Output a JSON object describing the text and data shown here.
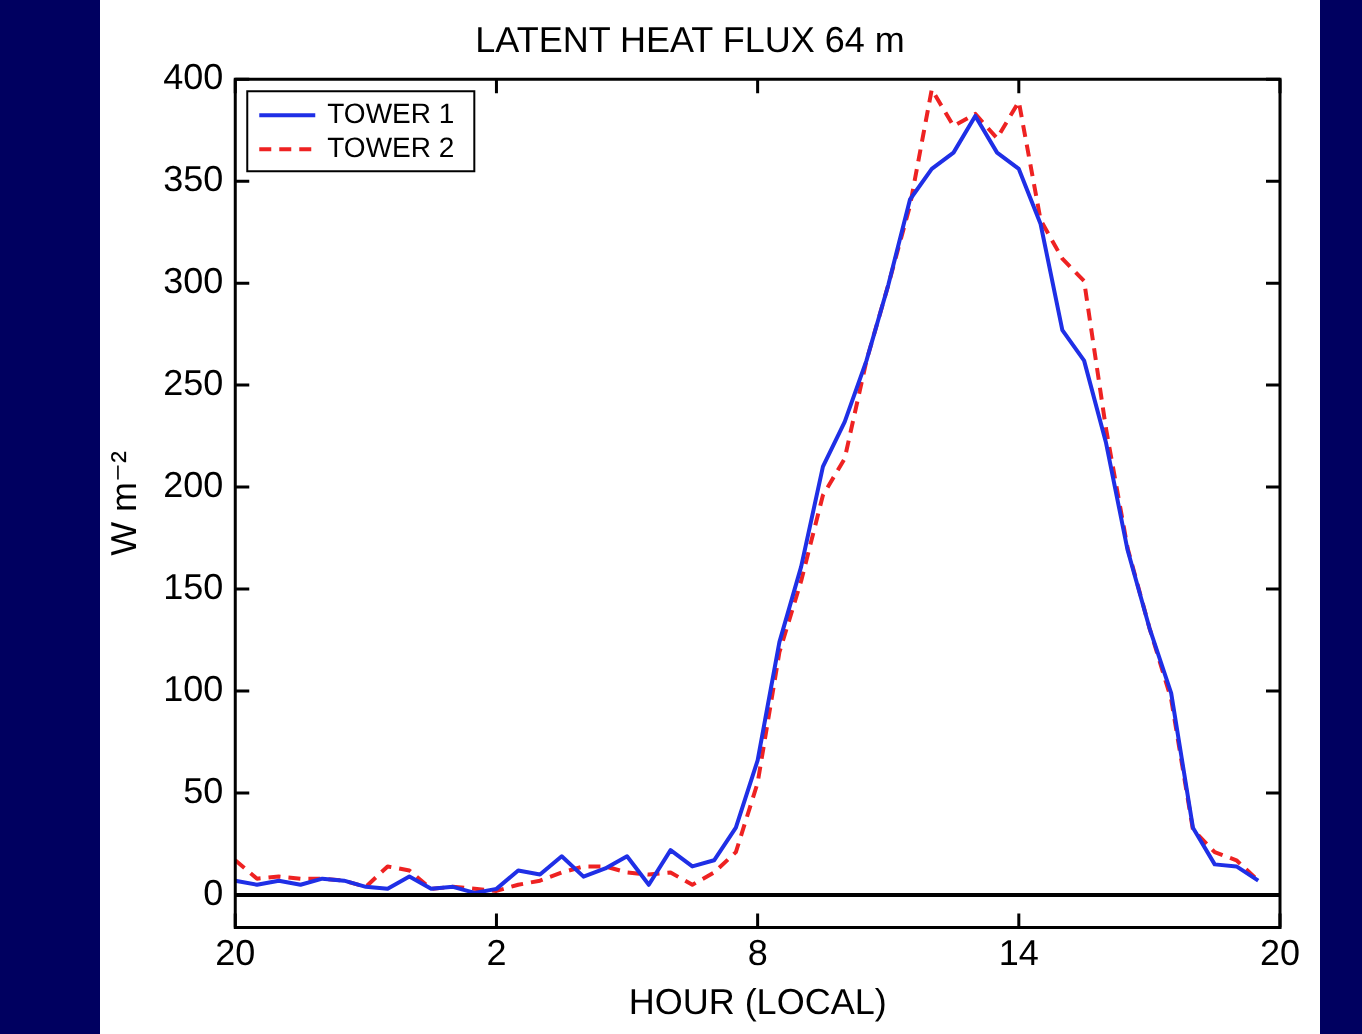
{
  "chart_data": {
    "type": "line",
    "title": "LATENT HEAT FLUX 64 m",
    "xlabel": "HOUR (LOCAL)",
    "ylabel": "W m⁻²",
    "categories": [
      "20",
      null,
      null,
      null,
      null,
      null,
      null,
      null,
      null,
      null,
      null,
      null,
      "2",
      null,
      null,
      null,
      null,
      null,
      null,
      null,
      null,
      null,
      null,
      null,
      "8",
      null,
      null,
      null,
      null,
      null,
      null,
      null,
      null,
      null,
      null,
      null,
      "14",
      null,
      null,
      null,
      null,
      null,
      null,
      null,
      null,
      null,
      null,
      null,
      "20"
    ],
    "series": [
      {
        "name": "TOWER 1",
        "color": "#1f2fe6",
        "line_style": "solid",
        "values": [
          7,
          5,
          7,
          5,
          8,
          7,
          4,
          3,
          9,
          3,
          4,
          1,
          3,
          12,
          10,
          19,
          9,
          13,
          19,
          5,
          22,
          14,
          17,
          33,
          66,
          124,
          161,
          210,
          232,
          262,
          299,
          341,
          356,
          364,
          382,
          364,
          356,
          329,
          277,
          262,
          222,
          169,
          131,
          99,
          33,
          15,
          14,
          7,
          null
        ]
      },
      {
        "name": "TOWER 2",
        "color": "#ee2222",
        "line_style": "dashed",
        "values": [
          17,
          8,
          9,
          8,
          8,
          7,
          4,
          14,
          12,
          3,
          4,
          3,
          2,
          5,
          7,
          11,
          14,
          14,
          11,
          10,
          11,
          5,
          11,
          21,
          55,
          119,
          154,
          196,
          214,
          262,
          299,
          338,
          395,
          377,
          383,
          371,
          389,
          331,
          312,
          301,
          229,
          170,
          131,
          96,
          32,
          21,
          17,
          7,
          null
        ]
      }
    ],
    "ylim": [
      -16,
      400
    ],
    "yticks": [
      0,
      50,
      100,
      150,
      200,
      250,
      300,
      350,
      400
    ],
    "ref_lines": [
      {
        "axis": "y",
        "value": 0,
        "color": "#000000"
      }
    ],
    "marker": "none",
    "grid": false,
    "legend": "top left"
  }
}
